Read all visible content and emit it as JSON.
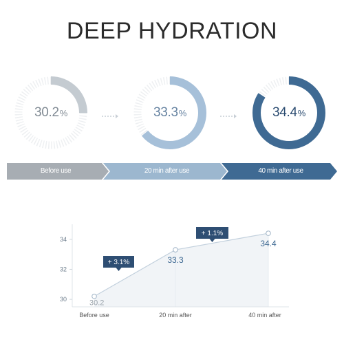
{
  "title": "DEEP HYDRATION",
  "rings": [
    {
      "value_text": "30.2",
      "unit": "%",
      "fill_fraction": 0.25,
      "color": "#c4cbd1",
      "text_color": "#818b94"
    },
    {
      "value_text": "33.3",
      "unit": "%",
      "fill_fraction": 0.64,
      "color": "#a6c0d9",
      "text_color": "#6683a1"
    },
    {
      "value_text": "34.4",
      "unit": "%",
      "fill_fraction": 0.84,
      "color": "#3f6a93",
      "text_color": "#2a4b70"
    }
  ],
  "steps": [
    {
      "label": "Before use",
      "color": "#a7adb3"
    },
    {
      "label": "20 min after use",
      "color": "#9cb7cf"
    },
    {
      "label": "40 min after use",
      "color": "#3f6a93"
    }
  ],
  "chart_data": {
    "type": "line",
    "categories": [
      "Before use",
      "20 min after",
      "40 min after"
    ],
    "values": [
      30.2,
      33.3,
      34.4
    ],
    "data_labels": [
      "30.2",
      "33.3",
      "34.4"
    ],
    "ylim": [
      29.5,
      35
    ],
    "yticks": [
      30,
      32,
      34
    ],
    "grid": false,
    "annotations": [
      {
        "text": "+ 3.1%",
        "between": [
          0,
          1
        ]
      },
      {
        "text": "+ 1.1%",
        "between": [
          1,
          2
        ]
      }
    ],
    "colors": {
      "line": "#c2d0dd",
      "area": "#f1f4f7",
      "bubble": "#2e4e73",
      "label_muted": "#9aa3ab",
      "label_strong": "#3f6a93"
    }
  }
}
